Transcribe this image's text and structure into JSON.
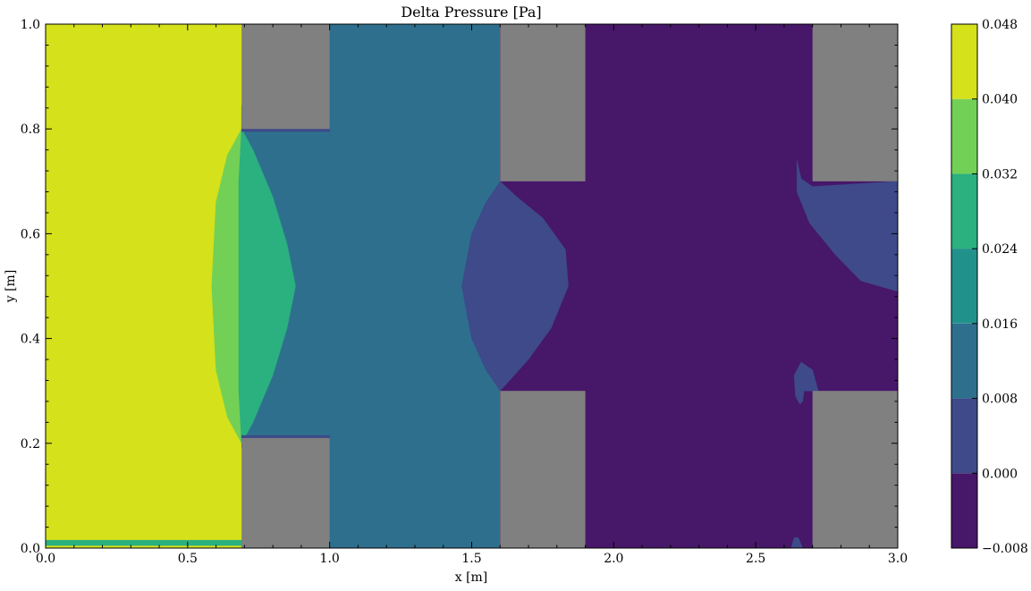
{
  "chart_data": {
    "type": "heatmap",
    "title": "Delta Pressure [Pa]",
    "xlabel": "x [m]",
    "ylabel": "y [m]",
    "xlim": [
      0,
      3
    ],
    "ylim": [
      0,
      1
    ],
    "x_ticks": [
      {
        "value": 0.0,
        "label": "0.0"
      },
      {
        "value": 0.5,
        "label": "0.5"
      },
      {
        "value": 1.0,
        "label": "1.0"
      },
      {
        "value": 1.5,
        "label": "1.5"
      },
      {
        "value": 2.0,
        "label": "2.0"
      },
      {
        "value": 2.5,
        "label": "2.5"
      },
      {
        "value": 3.0,
        "label": "3.0"
      }
    ],
    "y_ticks": [
      {
        "value": 0.0,
        "label": "0.0"
      },
      {
        "value": 0.2,
        "label": "0.2"
      },
      {
        "value": 0.4,
        "label": "0.4"
      },
      {
        "value": 0.6,
        "label": "0.6"
      },
      {
        "value": 0.8,
        "label": "0.8"
      },
      {
        "value": 1.0,
        "label": "1.0"
      }
    ],
    "colorbar": {
      "levels": [
        -0.008,
        0.0,
        0.008,
        0.016,
        0.024,
        0.032,
        0.04,
        0.048
      ],
      "labels": [
        "−0.008",
        "0.000",
        "0.008",
        "0.016",
        "0.024",
        "0.032",
        "0.040",
        "0.048"
      ],
      "colors": [
        "#471769",
        "#3e4a89",
        "#2e6f8e",
        "#21918c",
        "#2bb07f",
        "#73d056",
        "#d4e11b"
      ]
    },
    "obstacle_color": "#808080",
    "obstacles": [
      {
        "x0": 0.69,
        "x1": 1.0,
        "y0": 0.8,
        "y1": 1.0
      },
      {
        "x0": 0.69,
        "x1": 1.0,
        "y0": 0.0,
        "y1": 0.21
      },
      {
        "x0": 1.6,
        "x1": 1.9,
        "y0": 0.7,
        "y1": 1.0
      },
      {
        "x0": 1.6,
        "x1": 1.9,
        "y0": 0.0,
        "y1": 0.3
      },
      {
        "x0": 2.7,
        "x1": 3.0,
        "y0": 0.7,
        "y1": 1.0
      },
      {
        "x0": 2.7,
        "x1": 3.0,
        "y0": 0.0,
        "y1": 0.3
      }
    ],
    "regions": [
      {
        "level": 6,
        "pts": [
          [
            0,
            0
          ],
          [
            0.69,
            0
          ],
          [
            0.69,
            1.0
          ],
          [
            0,
            1.0
          ]
        ]
      },
      {
        "level": 2,
        "pts": [
          [
            0.69,
            0
          ],
          [
            1.6,
            0
          ],
          [
            1.6,
            1.0
          ],
          [
            0.69,
            1.0
          ]
        ]
      },
      {
        "level": 0,
        "pts": [
          [
            1.6,
            0
          ],
          [
            2.7,
            0
          ],
          [
            2.7,
            1.0
          ],
          [
            1.6,
            1.0
          ]
        ]
      },
      {
        "level": 0,
        "pts": [
          [
            2.7,
            0.3
          ],
          [
            3.0,
            0.3
          ],
          [
            3.0,
            0.7
          ],
          [
            2.7,
            0.7
          ]
        ]
      },
      {
        "level": 5,
        "pts": [
          [
            0.69,
            0.8
          ],
          [
            0.64,
            0.75
          ],
          [
            0.6,
            0.66
          ],
          [
            0.585,
            0.5
          ],
          [
            0.6,
            0.34
          ],
          [
            0.64,
            0.25
          ],
          [
            0.69,
            0.2
          ],
          [
            0.7,
            0.32
          ],
          [
            0.7,
            0.5
          ],
          [
            0.7,
            0.68
          ]
        ]
      },
      {
        "level": 4,
        "pts": [
          [
            0.69,
            0.8
          ],
          [
            0.73,
            0.76
          ],
          [
            0.8,
            0.67
          ],
          [
            0.85,
            0.58
          ],
          [
            0.88,
            0.5
          ],
          [
            0.85,
            0.42
          ],
          [
            0.8,
            0.33
          ],
          [
            0.73,
            0.24
          ],
          [
            0.69,
            0.2
          ],
          [
            0.68,
            0.3
          ],
          [
            0.68,
            0.5
          ],
          [
            0.68,
            0.7
          ]
        ]
      },
      {
        "level": 1,
        "pts": [
          [
            1.6,
            0.7
          ],
          [
            1.55,
            0.66
          ],
          [
            1.5,
            0.6
          ],
          [
            1.465,
            0.5
          ],
          [
            1.5,
            0.4
          ],
          [
            1.55,
            0.34
          ],
          [
            1.6,
            0.3
          ],
          [
            1.7,
            0.36
          ],
          [
            1.78,
            0.42
          ],
          [
            1.84,
            0.5
          ],
          [
            1.83,
            0.57
          ],
          [
            1.75,
            0.63
          ],
          [
            1.66,
            0.67
          ]
        ]
      },
      {
        "level": 1,
        "pts": [
          [
            2.7,
            0.69
          ],
          [
            2.66,
            0.705
          ],
          [
            2.645,
            0.74
          ],
          [
            2.645,
            0.68
          ],
          [
            2.69,
            0.62
          ],
          [
            2.78,
            0.56
          ],
          [
            2.87,
            0.51
          ],
          [
            3.0,
            0.49
          ],
          [
            3.0,
            0.7
          ]
        ]
      },
      {
        "level": 1,
        "pts": [
          [
            2.72,
            0.3
          ],
          [
            2.7,
            0.34
          ],
          [
            2.66,
            0.355
          ],
          [
            2.635,
            0.33
          ],
          [
            2.64,
            0.29
          ],
          [
            2.655,
            0.275
          ],
          [
            2.665,
            0.28
          ],
          [
            2.67,
            0.3
          ]
        ]
      },
      {
        "level": 1,
        "pts": [
          [
            2.625,
            0.0
          ],
          [
            2.635,
            0.02
          ],
          [
            2.65,
            0.02
          ],
          [
            2.665,
            0.0
          ]
        ]
      },
      {
        "level": 6,
        "pts": [
          [
            0.69,
            0.845
          ],
          [
            0.66,
            0.86
          ],
          [
            0.58,
            0.89
          ],
          [
            0.52,
            0.93
          ],
          [
            0.49,
            0.97
          ],
          [
            0.475,
            1.0
          ],
          [
            0.69,
            1.0
          ]
        ]
      },
      {
        "level": 6,
        "pts": [
          [
            0.43,
            0.015
          ],
          [
            0.44,
            0.07
          ],
          [
            0.47,
            0.09
          ],
          [
            0.5,
            0.11
          ],
          [
            0.53,
            0.13
          ],
          [
            0.55,
            0.14
          ],
          [
            0.58,
            0.145
          ],
          [
            0.62,
            0.15
          ],
          [
            0.65,
            0.16
          ],
          [
            0.69,
            0.19
          ],
          [
            0.69,
            0.015
          ]
        ]
      },
      {
        "level": 6,
        "pts": [
          [
            0.0,
            0.19
          ],
          [
            0.02,
            0.13
          ],
          [
            0.025,
            0.12
          ],
          [
            0.02,
            0.11
          ],
          [
            0.0,
            0.1
          ]
        ]
      },
      {
        "level": 6,
        "pts": [
          [
            0.07,
            0.2
          ],
          [
            0.09,
            0.18
          ],
          [
            0.095,
            0.16
          ],
          [
            0.08,
            0.16
          ],
          [
            0.07,
            0.18
          ]
        ]
      },
      {
        "level": 6,
        "pts": [
          [
            0.06,
            0.06
          ],
          [
            0.08,
            0.05
          ],
          [
            0.1,
            0.02
          ],
          [
            0.1,
            0.0
          ],
          [
            0.06,
            0.0
          ],
          [
            0.05,
            0.03
          ]
        ]
      },
      {
        "level": 6,
        "pts": [
          [
            0.16,
            0.05
          ],
          [
            0.17,
            0.04
          ],
          [
            0.21,
            0.01
          ],
          [
            0.21,
            0.0
          ],
          [
            0.16,
            0.0
          ],
          [
            0.15,
            0.02
          ]
        ]
      },
      {
        "level": 4,
        "pts": [
          [
            0.0,
            0.005
          ],
          [
            0.69,
            0.005
          ],
          [
            0.69,
            0.015
          ],
          [
            0.0,
            0.015
          ]
        ]
      },
      {
        "level": 1,
        "pts": [
          [
            0.69,
            0.795
          ],
          [
            1.0,
            0.795
          ],
          [
            1.0,
            0.805
          ],
          [
            0.69,
            0.805
          ]
        ]
      },
      {
        "level": 1,
        "pts": [
          [
            0.69,
            0.205
          ],
          [
            1.0,
            0.205
          ],
          [
            1.0,
            0.215
          ],
          [
            0.69,
            0.215
          ]
        ]
      }
    ]
  }
}
